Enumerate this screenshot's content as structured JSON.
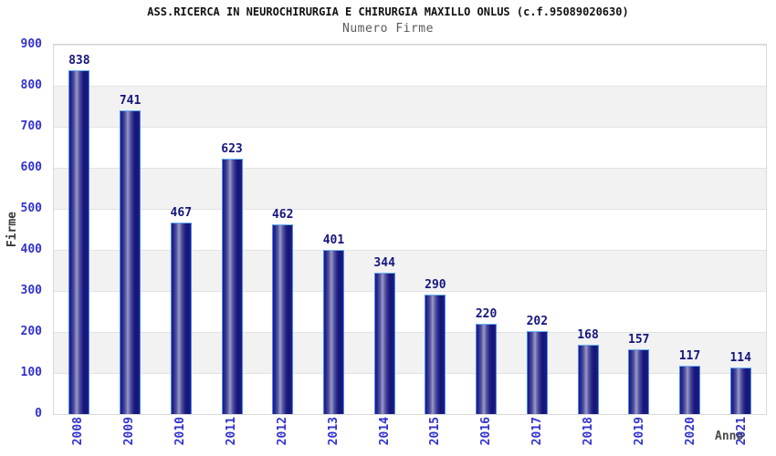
{
  "chart_data": {
    "type": "bar",
    "title": "ASS.RICERCA IN NEUROCHIRURGIA E CHIRURGIA MAXILLO ONLUS (c.f.95089020630)",
    "subtitle": "Numero Firme",
    "xlabel": "Anno",
    "ylabel": "Firme",
    "categories": [
      "2008",
      "2009",
      "2010",
      "2011",
      "2012",
      "2013",
      "2014",
      "2015",
      "2016",
      "2017",
      "2018",
      "2019",
      "2020",
      "2021"
    ],
    "values": [
      838,
      741,
      467,
      623,
      462,
      401,
      344,
      290,
      220,
      202,
      168,
      157,
      117,
      114
    ],
    "ylim": [
      0,
      900
    ],
    "y_ticks": [
      0,
      100,
      200,
      300,
      400,
      500,
      600,
      700,
      800,
      900
    ],
    "grid": "horizontal-gridlines-with-alternating-bands",
    "legend": "none",
    "colors": {
      "bar_fill_dark": "#1d1d86",
      "bar_fill_light": "#9a9ac8",
      "bar_border": "#4a8cf0",
      "bar_border_top": "#6ab0f8",
      "value_label": "#15157d",
      "tick_label": "#3232cf",
      "axis_title": "#3a3a3a",
      "x_axis_title": "#4a4a4a",
      "subtitle": "#5a5a5a",
      "band_gray": "#f2f2f2",
      "grid_line": "#e2e2e2",
      "plot_border": "#d8d8d8"
    }
  }
}
